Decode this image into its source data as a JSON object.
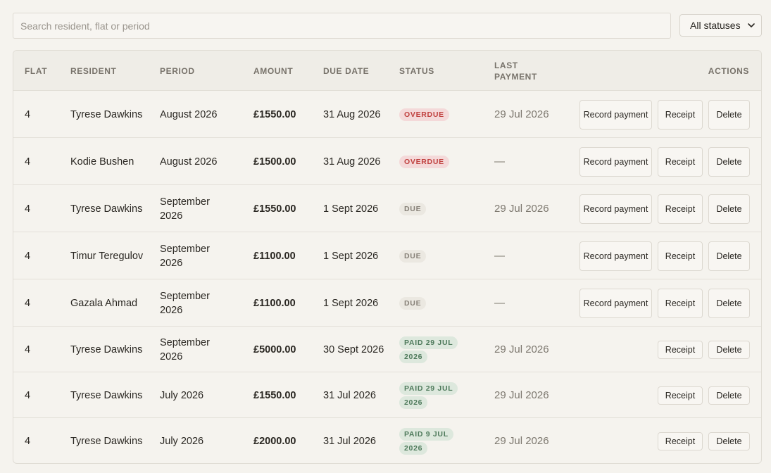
{
  "search": {
    "placeholder": "Search resident, flat or period"
  },
  "status_filter": {
    "selected": "All statuses"
  },
  "table": {
    "columns": [
      "Flat",
      "Resident",
      "Period",
      "Amount",
      "Due date",
      "Status",
      "Last payment",
      "Actions"
    ],
    "actions": {
      "record": "Record payment",
      "receipt": "Receipt",
      "delete": "Delete"
    },
    "rows": [
      {
        "flat": "4",
        "resident": "Tyrese Dawkins",
        "period": "August 2026",
        "amount": "£1550.00",
        "due": "31 Aug 2026",
        "status": "Overdue",
        "status_kind": "overdue",
        "last_payment": "29 Jul 2026"
      },
      {
        "flat": "4",
        "resident": "Kodie Bushen",
        "period": "August 2026",
        "amount": "£1500.00",
        "due": "31 Aug 2026",
        "status": "Overdue",
        "status_kind": "overdue",
        "last_payment": "—"
      },
      {
        "flat": "4",
        "resident": "Tyrese Dawkins",
        "period": "September 2026",
        "amount": "£1550.00",
        "due": "1 Sept 2026",
        "status": "Due",
        "status_kind": "due",
        "last_payment": "29 Jul 2026"
      },
      {
        "flat": "4",
        "resident": "Timur Teregulov",
        "period": "September 2026",
        "amount": "£1100.00",
        "due": "1 Sept 2026",
        "status": "Due",
        "status_kind": "due",
        "last_payment": "—"
      },
      {
        "flat": "4",
        "resident": "Gazala Ahmad",
        "period": "September 2026",
        "amount": "£1100.00",
        "due": "1 Sept 2026",
        "status": "Due",
        "status_kind": "due",
        "last_payment": "—"
      },
      {
        "flat": "4",
        "resident": "Tyrese Dawkins",
        "period": "September 2026",
        "amount": "£5000.00",
        "due": "30 Sept 2026",
        "status": "Paid 29 Jul 2026",
        "status_kind": "paid",
        "last_payment": "29 Jul 2026"
      },
      {
        "flat": "4",
        "resident": "Tyrese Dawkins",
        "period": "July 2026",
        "amount": "£1550.00",
        "due": "31 Jul 2026",
        "status": "Paid 29 Jul 2026",
        "status_kind": "paid",
        "last_payment": "29 Jul 2026"
      },
      {
        "flat": "4",
        "resident": "Tyrese Dawkins",
        "period": "July 2026",
        "amount": "£2000.00",
        "due": "31 Jul 2026",
        "status": "Paid 9 Jul 2026",
        "status_kind": "paid",
        "last_payment": "29 Jul 2026"
      }
    ]
  },
  "colors": {
    "background": "#f5f3ee",
    "overdue_badge_bg": "#f4d9d9",
    "overdue_badge_text": "#c0413f",
    "due_badge_bg": "#ebe8e1",
    "paid_badge_bg": "#dde8dd",
    "paid_badge_text": "#4e7a5b"
  },
  "icons": {
    "select_chevron": "chevron-down-icon"
  }
}
